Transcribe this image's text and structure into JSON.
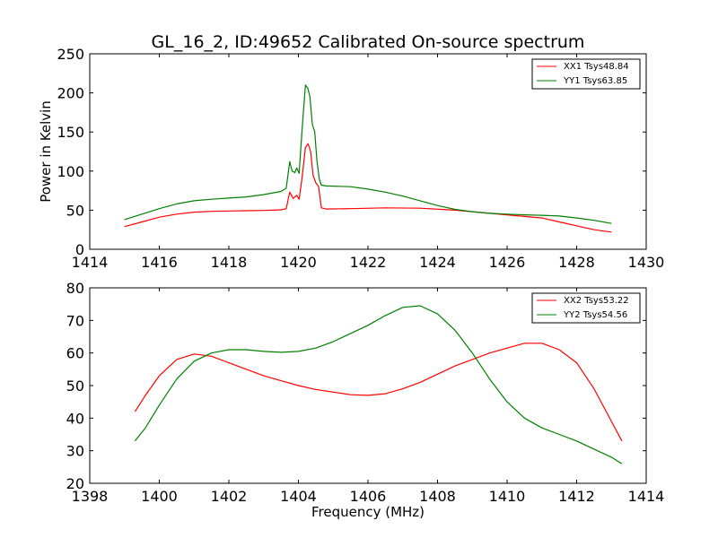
{
  "title": "GL_16_2, ID:49652 Calibrated On-source spectrum",
  "chart_data": [
    {
      "type": "line",
      "xlabel": "",
      "ylabel": "Power in Kelvin",
      "xlim": [
        1414,
        1430
      ],
      "ylim": [
        0,
        250
      ],
      "xticks": [
        "1414",
        "1416",
        "1418",
        "1420",
        "1422",
        "1424",
        "1426",
        "1428",
        "1430"
      ],
      "yticks": [
        "0",
        "50",
        "100",
        "150",
        "200",
        "250"
      ],
      "legend_placement": "top-right",
      "grid": false,
      "series": [
        {
          "name": "XX1 Tsys48.84",
          "color": "#ff0000",
          "points": [
            [
              1415.0,
              29
            ],
            [
              1415.5,
              35
            ],
            [
              1416.0,
              41
            ],
            [
              1416.5,
              45
            ],
            [
              1417.0,
              47.5
            ],
            [
              1417.5,
              48.5
            ],
            [
              1418.0,
              49
            ],
            [
              1418.5,
              49.3
            ],
            [
              1419.0,
              49.6
            ],
            [
              1419.5,
              50.5
            ],
            [
              1419.65,
              52
            ],
            [
              1419.75,
              73
            ],
            [
              1419.85,
              65
            ],
            [
              1419.95,
              69
            ],
            [
              1420.02,
              64
            ],
            [
              1420.1,
              90
            ],
            [
              1420.2,
              130
            ],
            [
              1420.28,
              135
            ],
            [
              1420.35,
              125
            ],
            [
              1420.42,
              95
            ],
            [
              1420.5,
              85
            ],
            [
              1420.58,
              80
            ],
            [
              1420.66,
              53
            ],
            [
              1420.8,
              51.5
            ],
            [
              1421.5,
              52
            ],
            [
              1422.5,
              53
            ],
            [
              1423.5,
              52.5
            ],
            [
              1424.5,
              50
            ],
            [
              1425.0,
              48
            ],
            [
              1426.0,
              44
            ],
            [
              1427.0,
              40
            ],
            [
              1427.5,
              35
            ],
            [
              1428.0,
              30
            ],
            [
              1428.5,
              25
            ],
            [
              1429.0,
              22
            ]
          ]
        },
        {
          "name": "YY1 Tsys63.85",
          "color": "#008000",
          "points": [
            [
              1415.0,
              38
            ],
            [
              1415.5,
              45
            ],
            [
              1416.0,
              52
            ],
            [
              1416.5,
              58
            ],
            [
              1417.0,
              62
            ],
            [
              1417.5,
              64
            ],
            [
              1418.0,
              65.5
            ],
            [
              1418.5,
              67
            ],
            [
              1419.0,
              70
            ],
            [
              1419.5,
              74
            ],
            [
              1419.65,
              78
            ],
            [
              1419.75,
              112
            ],
            [
              1419.82,
              100
            ],
            [
              1419.9,
              98
            ],
            [
              1419.95,
              104
            ],
            [
              1420.02,
              97
            ],
            [
              1420.1,
              150
            ],
            [
              1420.2,
              210
            ],
            [
              1420.27,
              206
            ],
            [
              1420.33,
              195
            ],
            [
              1420.4,
              160
            ],
            [
              1420.47,
              150
            ],
            [
              1420.53,
              115
            ],
            [
              1420.6,
              90
            ],
            [
              1420.66,
              82
            ],
            [
              1420.8,
              81
            ],
            [
              1421.5,
              80
            ],
            [
              1422.0,
              77
            ],
            [
              1422.5,
              73
            ],
            [
              1423.0,
              68
            ],
            [
              1423.5,
              62
            ],
            [
              1424.0,
              56
            ],
            [
              1424.5,
              51
            ],
            [
              1425.0,
              48
            ],
            [
              1425.5,
              46
            ],
            [
              1426.0,
              45
            ],
            [
              1426.5,
              44
            ],
            [
              1427.0,
              43.5
            ],
            [
              1427.5,
              42.5
            ],
            [
              1428.0,
              40
            ],
            [
              1428.5,
              37
            ],
            [
              1429.0,
              33
            ]
          ]
        }
      ]
    },
    {
      "type": "line",
      "xlabel": "Frequency (MHz)",
      "ylabel": "",
      "xlim": [
        1398,
        1414
      ],
      "ylim": [
        20,
        80
      ],
      "xticks": [
        "1398",
        "1400",
        "1402",
        "1404",
        "1406",
        "1408",
        "1410",
        "1412",
        "1414"
      ],
      "yticks": [
        "20",
        "30",
        "40",
        "50",
        "60",
        "70",
        "80"
      ],
      "legend_placement": "top-right",
      "grid": false,
      "series": [
        {
          "name": "XX2 Tsys53.22",
          "color": "#ff0000",
          "points": [
            [
              1399.3,
              42
            ],
            [
              1399.6,
              47
            ],
            [
              1400.0,
              53
            ],
            [
              1400.5,
              58
            ],
            [
              1401.0,
              59.7
            ],
            [
              1401.5,
              59
            ],
            [
              1402.0,
              57
            ],
            [
              1402.5,
              55
            ],
            [
              1403.0,
              53
            ],
            [
              1403.5,
              51.5
            ],
            [
              1404.0,
              50
            ],
            [
              1404.5,
              48.8
            ],
            [
              1405.0,
              48
            ],
            [
              1405.5,
              47.2
            ],
            [
              1406.0,
              47
            ],
            [
              1406.5,
              47.5
            ],
            [
              1407.0,
              49
            ],
            [
              1407.5,
              51
            ],
            [
              1408.0,
              53.5
            ],
            [
              1408.5,
              56
            ],
            [
              1409.0,
              58
            ],
            [
              1409.5,
              60
            ],
            [
              1410.0,
              61.5
            ],
            [
              1410.5,
              63
            ],
            [
              1411.0,
              63
            ],
            [
              1411.5,
              61
            ],
            [
              1412.0,
              57
            ],
            [
              1412.5,
              49
            ],
            [
              1413.0,
              39
            ],
            [
              1413.3,
              33
            ]
          ]
        },
        {
          "name": "YY2 Tsys54.56",
          "color": "#008000",
          "points": [
            [
              1399.3,
              33
            ],
            [
              1399.6,
              37
            ],
            [
              1400.0,
              44
            ],
            [
              1400.5,
              52
            ],
            [
              1401.0,
              57.5
            ],
            [
              1401.5,
              60
            ],
            [
              1402.0,
              61
            ],
            [
              1402.5,
              61
            ],
            [
              1403.0,
              60.5
            ],
            [
              1403.5,
              60.2
            ],
            [
              1404.0,
              60.5
            ],
            [
              1404.5,
              61.5
            ],
            [
              1405.0,
              63.5
            ],
            [
              1405.5,
              66
            ],
            [
              1406.0,
              68.5
            ],
            [
              1406.5,
              71.5
            ],
            [
              1407.0,
              74
            ],
            [
              1407.5,
              74.5
            ],
            [
              1408.0,
              72
            ],
            [
              1408.5,
              67
            ],
            [
              1409.0,
              60
            ],
            [
              1409.5,
              52
            ],
            [
              1410.0,
              45
            ],
            [
              1410.5,
              40
            ],
            [
              1411.0,
              37
            ],
            [
              1411.5,
              35
            ],
            [
              1412.0,
              33
            ],
            [
              1412.5,
              30.5
            ],
            [
              1413.0,
              28
            ],
            [
              1413.3,
              26
            ]
          ]
        }
      ]
    }
  ]
}
